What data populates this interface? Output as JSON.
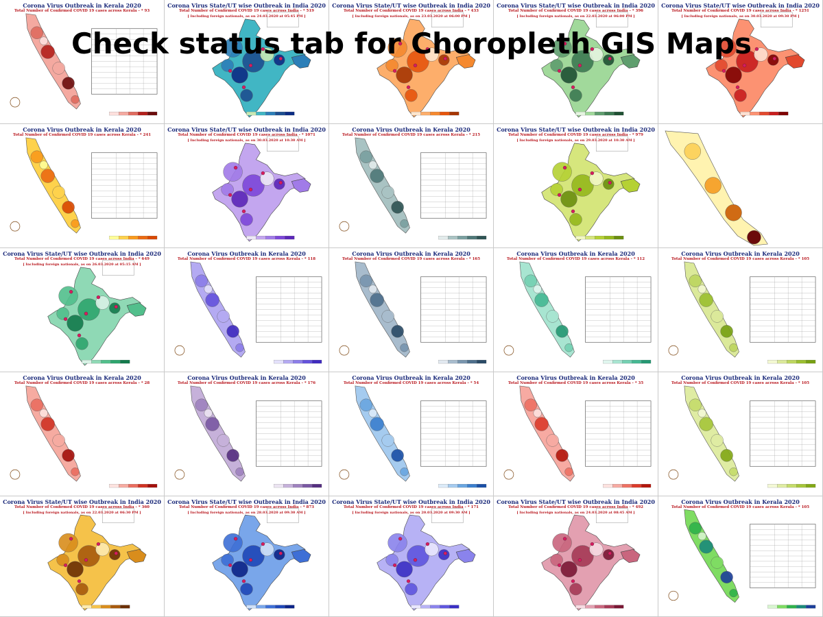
{
  "overlay": {
    "heading": "Check status tab for Choropleth GIS Maps"
  },
  "tiles": [
    {
      "kind": "kerala",
      "title": "Corona Virus Outbreak in Kerala 2020",
      "subtitle": "Total Number of Confirmed COVID 19 cases across Kerala - * 93",
      "subtitle2": "",
      "palette": [
        "#fde0dd",
        "#f4a9a0",
        "#e06c5f",
        "#b3201c",
        "#6b0c0c"
      ],
      "table": true
    },
    {
      "kind": "india",
      "title": "Corona Virus State/UT wise Outbreak in India 2020",
      "subtitle": "Total Number of Confirmed COVID 19 cases across India - * 519",
      "subtitle2": "[ Including foreign nationals, as on 24.03.2020 at 05:45 PM ]",
      "palette": [
        "#c7e9b4",
        "#41b6c4",
        "#2c7fb8",
        "#1d4f91",
        "#0c2c84"
      ],
      "table": false
    },
    {
      "kind": "india",
      "title": "Corona Virus State/UT wise Outbreak in India 2020",
      "subtitle": "Total Number of Confirmed COVID 19 cases across India - * 433",
      "subtitle2": "[ Including foreign nationals, as on 23.03.2020 at 06:00 PM ]",
      "palette": [
        "#fee6ce",
        "#fdae6b",
        "#f5892f",
        "#e6550d",
        "#a63603"
      ],
      "table": false
    },
    {
      "kind": "india",
      "title": "Corona Virus State/UT wise Outbreak in India 2020",
      "subtitle": "Total Number of Confirmed COVID 19 cases across India - * 396",
      "subtitle2": "[ Including foreign nationals, as on 22.03.2020 at 06:00 PM ]",
      "palette": [
        "#e5f5e0",
        "#a1d99b",
        "#5f9e6e",
        "#3d7a52",
        "#1f5133"
      ],
      "table": false
    },
    {
      "kind": "india",
      "title": "Corona Virus State/UT wise Outbreak in India 2020",
      "subtitle": "Total Number of Confirmed COVID 19 cases across India - * 1251",
      "subtitle2": "[ Including foreign nationals, as on 30.03.2020 at 09:30 PM ]",
      "palette": [
        "#fee0d2",
        "#fc9272",
        "#e2492e",
        "#c81e1e",
        "#7f0000"
      ],
      "table": false
    },
    {
      "kind": "kerala",
      "title": "Corona Virus Outbreak in Kerala 2020",
      "subtitle": "Total Number of Confirmed COVID 19 cases across Kerala - * 241",
      "subtitle2": "",
      "palette": [
        "#ffff99",
        "#fed24c",
        "#f99a1c",
        "#ec6a12",
        "#d94801"
      ],
      "table": true
    },
    {
      "kind": "india",
      "title": "Corona Virus State/UT wise Outbreak in India 2020",
      "subtitle": "Total Number of Confirmed COVID 19 cases across India - * 1071",
      "subtitle2": "[ Including foreign nationals, as on 30.03.2020 at 10:30 AM ]",
      "palette": [
        "#ede7f6",
        "#c3a6ef",
        "#a17be8",
        "#7d47d9",
        "#5b26b8"
      ],
      "table": false
    },
    {
      "kind": "kerala",
      "title": "Corona Virus Outbreak in Kerala 2020",
      "subtitle": "Total Number of Confirmed COVID 19 cases across Kerala - * 215",
      "subtitle2": "",
      "palette": [
        "#e3ecec",
        "#a9c3c3",
        "#7aa0a0",
        "#4f7878",
        "#2e5454"
      ],
      "table": true
    },
    {
      "kind": "india",
      "title": "Corona Virus State/UT wise Outbreak in India 2020",
      "subtitle": "Total Number of Confirmed COVID 19 cases across India - * 979",
      "subtitle2": "[ Including foreign nationals, as on 29.03.2020 at 10:30 AM ]",
      "palette": [
        "#f1f7c4",
        "#d6e67d",
        "#b5d134",
        "#95b81c",
        "#6b8f0f"
      ],
      "table": false
    },
    {
      "kind": "kerala-plain",
      "title": "",
      "subtitle": "",
      "subtitle2": "",
      "palette": [
        "#fff3b0",
        "#fcd35f",
        "#f6a530",
        "#d06b14",
        "#6b0a0a"
      ],
      "table": false
    },
    {
      "kind": "india",
      "title": "Corona Virus State/UT wise Outbreak in India 2020",
      "subtitle": "Total Number of Confirmed COVID 19 cases across India - * 649",
      "subtitle2": "[ Including foreign nationals, as on 26.03.2020 at 05:15 AM ]",
      "palette": [
        "#d9f2e6",
        "#8fd9b5",
        "#52bf8c",
        "#2ea56e",
        "#137a4c"
      ],
      "table": false
    },
    {
      "kind": "kerala",
      "title": "Corona Virus Outbreak in Kerala 2020",
      "subtitle": "Total Number of Confirmed COVID 19 cases across Kerala - * 118",
      "subtitle2": "",
      "palette": [
        "#e4e1fb",
        "#b4aaf2",
        "#8c7de9",
        "#6452dc",
        "#3f2bbf"
      ],
      "table": true
    },
    {
      "kind": "kerala",
      "title": "Corona Virus Outbreak in Kerala 2020",
      "subtitle": "Total Number of Confirmed COVID 19 cases across Kerala - * 165",
      "subtitle2": "",
      "palette": [
        "#e2e9f0",
        "#a8bccd",
        "#7895ae",
        "#4e6f8c",
        "#2a4a66"
      ],
      "table": true
    },
    {
      "kind": "kerala",
      "title": "Corona Virus Outbreak in Kerala 2020",
      "subtitle": "Total Number of Confirmed COVID 19 cases across Kerala - * 112",
      "subtitle2": "",
      "palette": [
        "#e0f6ef",
        "#a8e5d1",
        "#74d0b2",
        "#45b893",
        "#259873"
      ],
      "table": true
    },
    {
      "kind": "kerala",
      "title": "Corona Virus Outbreak in Kerala 2020",
      "subtitle": "Total Number of Confirmed COVID 19 cases across Kerala - * 105",
      "subtitle2": "",
      "palette": [
        "#f3f8d2",
        "#dbe99a",
        "#bdd65f",
        "#9bbf2f",
        "#77a012"
      ],
      "table": true
    },
    {
      "kind": "kerala",
      "title": "Corona Virus Outbreak in Kerala 2020",
      "subtitle": "Total Number of Confirmed COVID 19 cases across Kerala - * 28",
      "subtitle2": "",
      "palette": [
        "#fde3df",
        "#f6aba1",
        "#ea6e60",
        "#d03324",
        "#a30f0b"
      ],
      "table": false
    },
    {
      "kind": "kerala",
      "title": "Corona Virus Outbreak in Kerala 2020",
      "subtitle": "Total Number of Confirmed COVID 19 cases across Kerala - * 176",
      "subtitle2": "",
      "palette": [
        "#ece4f2",
        "#c6b1da",
        "#9f82bf",
        "#7a59a3",
        "#552f80"
      ],
      "table": true
    },
    {
      "kind": "kerala",
      "title": "Corona Virus Outbreak in Kerala 2020",
      "subtitle": "Total Number of Confirmed COVID 19 cases across Kerala - * 54",
      "subtitle2": "",
      "palette": [
        "#dcebf9",
        "#a5cbef",
        "#6aa6e0",
        "#3b7fce",
        "#1a4fa6"
      ],
      "table": true
    },
    {
      "kind": "kerala",
      "title": "Corona Virus Outbreak in Kerala 2020",
      "subtitle": "Total Number of Confirmed COVID 19 cases across Kerala - * 35",
      "subtitle2": "",
      "palette": [
        "#fde2df",
        "#f7aaa2",
        "#ee7163",
        "#dc3b2b",
        "#b3160c"
      ],
      "table": true
    },
    {
      "kind": "kerala",
      "title": "Corona Virus Outbreak in Kerala 2020",
      "subtitle": "Total Number of Confirmed COVID 19 cases across Kerala - * 105",
      "subtitle2": "",
      "palette": [
        "#f4f9d6",
        "#dfeca3",
        "#c5dc6b",
        "#a6c63a",
        "#83a816"
      ],
      "table": true
    },
    {
      "kind": "india",
      "title": "Corona Virus State/UT wise Outbreak in India 2020",
      "subtitle": "Total Number of Confirmed COVID 19 cases across India - * 360",
      "subtitle2": "[ Including foreign nationals, as on 22.03.2020 at 06:30 PM ]",
      "palette": [
        "#fdebb0",
        "#f5c24a",
        "#d98d1c",
        "#a85a0c",
        "#6b2f04"
      ],
      "table": false
    },
    {
      "kind": "india",
      "title": "Corona Virus State/UT wise Outbreak in India 2020",
      "subtitle": "Total Number of Confirmed COVID 19 cases across India - * 873",
      "subtitle2": "[ Including foreign nationals, as on 28.03.2020 at 09:30 AM ]",
      "palette": [
        "#cfe0f7",
        "#79a6ea",
        "#3e6fd6",
        "#1f47b8",
        "#0c2488"
      ],
      "table": false
    },
    {
      "kind": "india",
      "title": "Corona Virus State/UT wise Outbreak in India 2020",
      "subtitle": "Total Number of Confirmed COVID 19 cases across India - * 171",
      "subtitle2": "[ Including foreign nationals, as on 20.03.2020 at 09:30 AM ]",
      "palette": [
        "#e9e7fd",
        "#b7b2f5",
        "#8a83ec",
        "#5f56de",
        "#3a2fc4"
      ],
      "table": false
    },
    {
      "kind": "india",
      "title": "Corona Virus State/UT wise Outbreak in India 2020",
      "subtitle": "Total Number of Confirmed COVID 19 cases across India - * 492",
      "subtitle2": "[ Including foreign nationals, as on 24.03.2020 at 08:45 AM ]",
      "palette": [
        "#f6dbe2",
        "#e3a0b1",
        "#c9667e",
        "#a63a56",
        "#7a1734"
      ],
      "table": false
    },
    {
      "kind": "kerala",
      "title": "Corona Virus Outbreak in Kerala 2020",
      "subtitle": "Total Number of Confirmed COVID 19 cases across Kerala - * 105",
      "subtitle2": "",
      "palette": [
        "#d8f5cf",
        "#7fdc63",
        "#2fb24a",
        "#1b8a7a",
        "#1c3f9a"
      ],
      "table": true
    }
  ]
}
